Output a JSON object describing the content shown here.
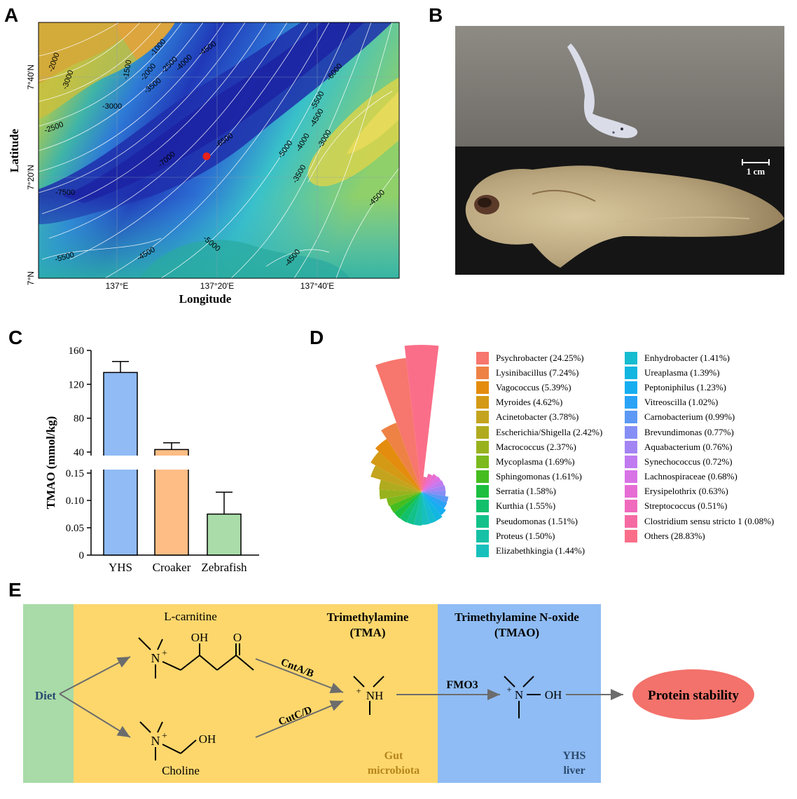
{
  "panels": {
    "A": "A",
    "B": "B",
    "C": "C",
    "D": "D",
    "E": "E"
  },
  "map": {
    "xlabel": "Longitude",
    "ylabel": "Latitude",
    "xticks": [
      "137°E",
      "137°20'E",
      "137°40'E"
    ],
    "yticks": [
      "7°40'N",
      "7°20'N",
      "7°N"
    ],
    "contours": [
      "-2000",
      "-3000",
      "-1000",
      "-1500",
      "-2000",
      "-2500",
      "-4000",
      "-4500",
      "-3500",
      "-3000",
      "-2500",
      "-6000",
      "-5500",
      "-4500",
      "-5000",
      "-4000",
      "-3500",
      "-3000",
      "-6500",
      "-7000",
      "-7500",
      "-5500",
      "-4500",
      "-5000",
      "-4500",
      "-4500"
    ],
    "site_color": "#e8221c"
  },
  "photo": {
    "scale": "1 cm"
  },
  "chart_data": {
    "type": "bar",
    "categories": [
      "YHS",
      "Croaker",
      "Zebrafish"
    ],
    "values": [
      134,
      43,
      0.075
    ],
    "errors": [
      13,
      8,
      0.04
    ],
    "colors": [
      "#90bbf5",
      "#fdbd85",
      "#a9dca9"
    ],
    "ylabel": "TMAO (mmol/kg)",
    "yticks_upper": [
      "160",
      "120",
      "80",
      "40"
    ],
    "yticks_lower": [
      "0.15",
      "0.10",
      "0.05",
      "0"
    ],
    "axis_break": true
  },
  "microbiota": {
    "type": "rose",
    "items": [
      {
        "label": "Psychrobacter (24.25%)",
        "value": 24.25,
        "color": "#f7766d"
      },
      {
        "label": "Lysinibacillus (7.24%)",
        "value": 7.24,
        "color": "#ee8245"
      },
      {
        "label": "Vagococcus (5.39%)",
        "value": 5.39,
        "color": "#e48c0e"
      },
      {
        "label": "Myroides (4.62%)",
        "value": 4.62,
        "color": "#d49a15"
      },
      {
        "label": "Acinetobacter (3.78%)",
        "value": 3.78,
        "color": "#c4a41e"
      },
      {
        "label": "Escherichia/Shigella (2.42%)",
        "value": 2.42,
        "color": "#b0ab1e"
      },
      {
        "label": "Macrococcus (2.37%)",
        "value": 2.37,
        "color": "#98b21d"
      },
      {
        "label": "Mycoplasma (1.69%)",
        "value": 1.69,
        "color": "#7bb91c"
      },
      {
        "label": "Sphingomonas (1.61%)",
        "value": 1.61,
        "color": "#45bd1f"
      },
      {
        "label": "Serratia (1.58%)",
        "value": 1.58,
        "color": "#1cbf3f"
      },
      {
        "label": "Kurthia (1.55%)",
        "value": 1.55,
        "color": "#12c06c"
      },
      {
        "label": "Pseudomonas (1.51%)",
        "value": 1.51,
        "color": "#12c189"
      },
      {
        "label": "Proteus (1.50%)",
        "value": 1.5,
        "color": "#16c1a6"
      },
      {
        "label": "Elizabethkingia (1.44%)",
        "value": 1.44,
        "color": "#17c0bc"
      },
      {
        "label": "Enhydrobacter (1.41%)",
        "value": 1.41,
        "color": "#16bcd0"
      },
      {
        "label": "Ureaplasma (1.39%)",
        "value": 1.39,
        "color": "#12b6e0"
      },
      {
        "label": "Peptoniphilus (1.23%)",
        "value": 1.23,
        "color": "#16aef0"
      },
      {
        "label": "Vitreoscilla (1.02%)",
        "value": 1.02,
        "color": "#2aa3f6"
      },
      {
        "label": "Carnobacterium (0.99%)",
        "value": 0.99,
        "color": "#5c98f4"
      },
      {
        "label": "Brevundimonas (0.77%)",
        "value": 0.77,
        "color": "#858ef5"
      },
      {
        "label": "Aquabacterium (0.76%)",
        "value": 0.76,
        "color": "#a384f3"
      },
      {
        "label": "Synechococcus (0.72%)",
        "value": 0.72,
        "color": "#c07bf0"
      },
      {
        "label": "Lachnospiraceae (0.68%)",
        "value": 0.68,
        "color": "#d873e6"
      },
      {
        "label": "Erysipelothrix (0.63%)",
        "value": 0.63,
        "color": "#e66dd4"
      },
      {
        "label": "Streptococcus (0.51%)",
        "value": 0.51,
        "color": "#f06abd"
      },
      {
        "label": "Clostridium sensu stricto 1 (0.08%)",
        "value": 0.08,
        "color": "#f56aa3"
      },
      {
        "label": "Others (28.83%)",
        "value": 28.83,
        "color": "#fb6e89"
      }
    ]
  },
  "pathway": {
    "diet": "Diet",
    "lcarnitine": "L-carnitine",
    "choline": "Choline",
    "tma_title_1": "Trimethylamine",
    "tma_title_2": "(TMA)",
    "tmao_title_1": "Trimethylamine N-oxide",
    "tmao_title_2": "(TMAO)",
    "cnt": "CntA/B",
    "cut": "CutC/D",
    "fmo3": "FMO3",
    "gut_1": "Gut",
    "gut_2": "microbiota",
    "yhs_1": "YHS",
    "yhs_2": "liver",
    "protein": "Protein stability",
    "oh": "OH",
    "o": "O",
    "n": "N",
    "nh": "NH",
    "plus": "+",
    "colors": {
      "diet": "#a8dba8",
      "gut": "#fdd76c",
      "liver": "#8fbcf4",
      "protein": "#f3726b",
      "gut_text": "#b5851b",
      "liver_text": "#2c4a6e"
    }
  }
}
